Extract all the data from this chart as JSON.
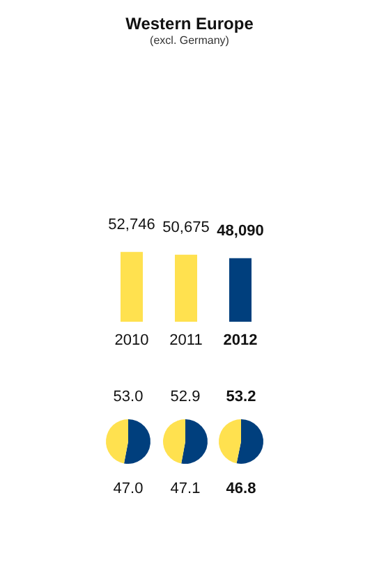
{
  "chart_data": [
    {
      "type": "bar",
      "title": "Western Europe",
      "subtitle": "(excl. Germany)",
      "categories": [
        "2010",
        "2011",
        "2012"
      ],
      "values": [
        52746,
        50675,
        48090
      ],
      "colors": [
        "#ffe14f",
        "#ffe14f",
        "#003f7d"
      ],
      "value_labels": [
        "52,746",
        "50,675",
        "48,090"
      ]
    },
    {
      "type": "pie",
      "categories": [
        null,
        null
      ],
      "values": [
        53.0,
        47.0
      ],
      "colors": [
        "#003f7d",
        "#ffe14f"
      ],
      "value_labels": [
        "53.0",
        "47.0"
      ]
    },
    {
      "type": "pie",
      "categories": [
        null,
        null
      ],
      "values": [
        52.9,
        47.1
      ],
      "colors": [
        "#003f7d",
        "#ffe14f"
      ],
      "value_labels": [
        "52.9",
        "47.1"
      ]
    },
    {
      "type": "pie",
      "categories": [
        null,
        null
      ],
      "values": [
        53.2,
        46.8
      ],
      "colors": [
        "#003f7d",
        "#ffe14f"
      ],
      "value_labels": [
        "53.2",
        "46.8"
      ]
    }
  ]
}
